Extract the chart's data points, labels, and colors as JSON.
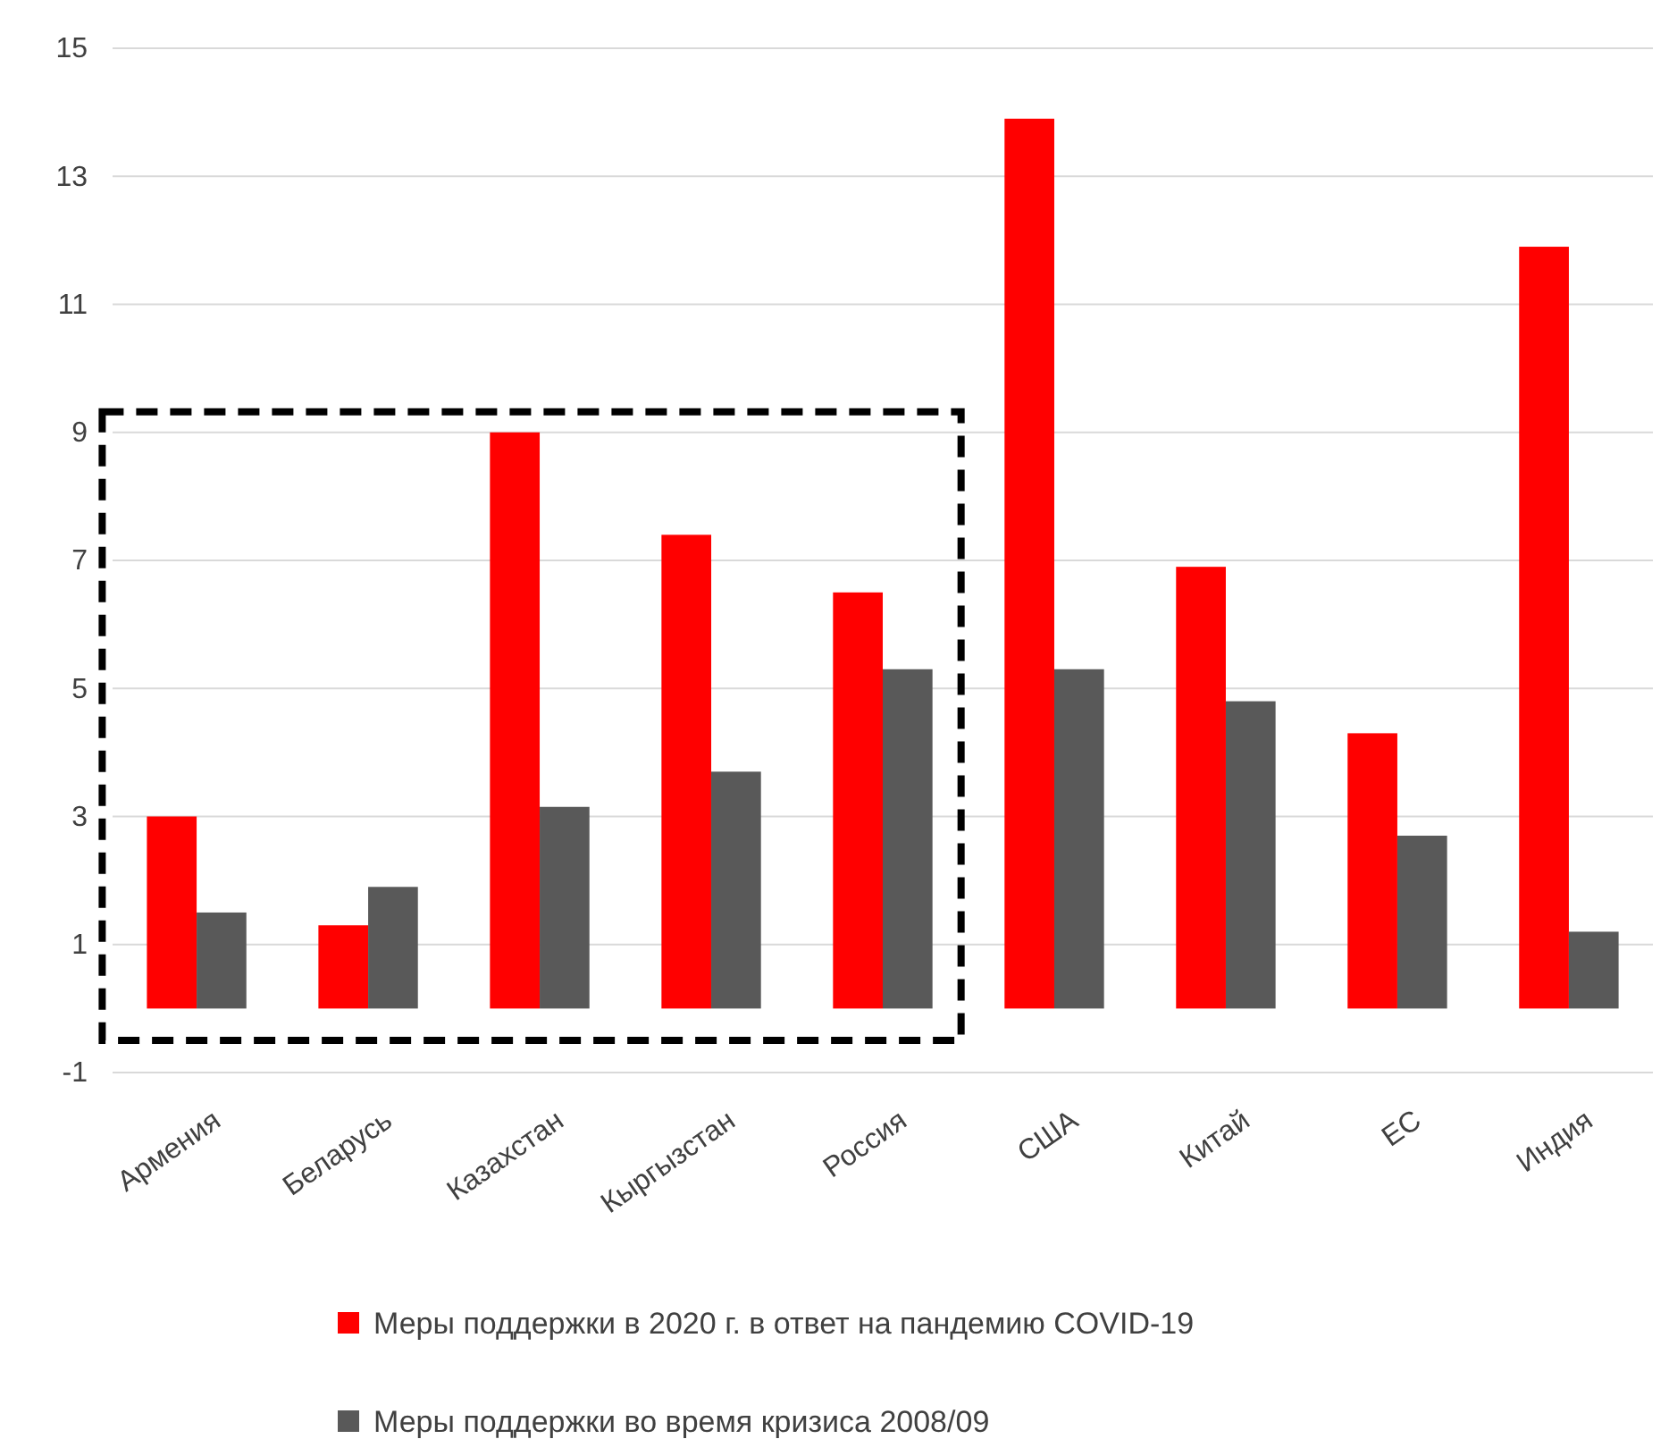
{
  "chart_data": {
    "type": "bar",
    "categories": [
      "Армения",
      "Беларусь",
      "Казахстан",
      "Кыргызстан",
      "Россия",
      "США",
      "Китай",
      "ЕС",
      "Индия"
    ],
    "series": [
      {
        "name": "Меры поддержки в 2020 г. в ответ на пандемию COVID-19",
        "color": "#ff0000",
        "values": [
          3.0,
          1.3,
          9.0,
          7.4,
          6.5,
          13.9,
          6.9,
          4.3,
          11.9
        ]
      },
      {
        "name": "Меры поддержки во время кризиса 2008/09",
        "color": "#595959",
        "values": [
          1.5,
          1.9,
          3.15,
          3.7,
          5.3,
          5.3,
          4.8,
          2.7,
          1.2
        ]
      }
    ],
    "ylim": [
      -1,
      15
    ],
    "yticks": [
      -1,
      1,
      3,
      5,
      7,
      9,
      11,
      13,
      15
    ],
    "grid": "y",
    "legend": "bottom"
  }
}
